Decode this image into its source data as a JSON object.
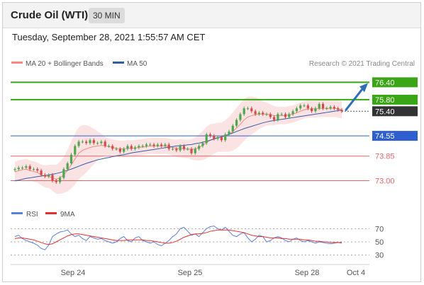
{
  "header": {
    "instrument": "Crude Oil (WTI)",
    "interval": "30 MIN",
    "timestamp": "Tuesday, September 28, 2021 1:55:57 AM CET"
  },
  "colors": {
    "bollinger": "#f4a7a7",
    "ma50": "#3a5fa8",
    "resistance": "#3aa515",
    "pivot": "#2f5fcf",
    "support": "#e06666",
    "last_price_bg": "#333333",
    "rsi": "#5b7fd6",
    "rsi_ma": "#e03030",
    "arrow": "#2f6eb5",
    "up_candle": "#4ea64e",
    "down_candle": "#d24a4a"
  },
  "chart_data": [
    {
      "type": "line",
      "name": "price",
      "legend": [
        {
          "label": "MA 20 + Bollinger Bands",
          "color": "#f28b82"
        },
        {
          "label": "MA 50",
          "color": "#2f5ea8"
        }
      ],
      "source": "Research © 2021 Trading Central",
      "ylim": [
        72.5,
        76.8
      ],
      "price_levels": [
        {
          "value": 76.4,
          "label": "76.40",
          "kind": "resistance"
        },
        {
          "value": 75.8,
          "label": "75.80",
          "kind": "resistance"
        },
        {
          "value": 75.4,
          "label": "75.40",
          "kind": "last"
        },
        {
          "value": 74.55,
          "label": "74.55",
          "kind": "pivot"
        },
        {
          "value": 73.85,
          "label": "73.85",
          "kind": "support"
        },
        {
          "value": 73.0,
          "label": "73.00",
          "kind": "support"
        }
      ],
      "series": [
        {
          "close": [
            73.4,
            73.45,
            73.45,
            73.5,
            73.4,
            73.4,
            73.35,
            73.2,
            73.15,
            73.2,
            73.0,
            72.95,
            73.1,
            73.4,
            73.6,
            73.9,
            74.2,
            74.35,
            74.35,
            74.3,
            74.4,
            74.3,
            74.3,
            74.35,
            74.2,
            74.2,
            74.1,
            74.1,
            74.0,
            74.1,
            74.2,
            74.1,
            74.15,
            74.2,
            74.2,
            74.25,
            74.25,
            74.2,
            74.25,
            74.2,
            74.25,
            74.1,
            74.1,
            74.05,
            74.2,
            74.1,
            74.1,
            73.95,
            74.1,
            74.2,
            74.3,
            74.6,
            74.55,
            74.45,
            74.5,
            74.4,
            74.6,
            74.7,
            74.9,
            75.1,
            75.3,
            75.5,
            75.5,
            75.4,
            75.3,
            75.35,
            75.3,
            75.3,
            75.2,
            75.1,
            75.3,
            75.3,
            75.2,
            75.3,
            75.4,
            75.5,
            75.6,
            75.6,
            75.5,
            75.4,
            75.5,
            75.65,
            75.5,
            75.5,
            75.55,
            75.5,
            75.45,
            75.4
          ]
        }
      ],
      "ma20": [
        73.3,
        73.35,
        73.38,
        73.4,
        73.35,
        73.32,
        73.28,
        73.2,
        73.15,
        73.15,
        73.1,
        73.05,
        73.1,
        73.2,
        73.35,
        73.55,
        73.75,
        73.95,
        74.05,
        74.1,
        74.15,
        74.18,
        74.2,
        74.22,
        74.2,
        74.18,
        74.15,
        74.12,
        74.1,
        74.1,
        74.12,
        74.12,
        74.13,
        74.15,
        74.16,
        74.18,
        74.2,
        74.2,
        74.2,
        74.2,
        74.2,
        74.18,
        74.15,
        74.12,
        74.12,
        74.1,
        74.1,
        74.08,
        74.1,
        74.15,
        74.22,
        74.32,
        74.4,
        74.45,
        74.5,
        74.5,
        74.55,
        74.6,
        74.7,
        74.82,
        74.95,
        75.1,
        75.2,
        75.25,
        75.28,
        75.3,
        75.3,
        75.3,
        75.28,
        75.25,
        75.25,
        75.25,
        75.25,
        75.28,
        75.3,
        75.35,
        75.4,
        75.45,
        75.48,
        75.48,
        75.48,
        75.5,
        75.5,
        75.5,
        75.5,
        75.5,
        75.48,
        75.45
      ],
      "ma50": [
        73.0,
        73.02,
        73.05,
        73.08,
        73.1,
        73.12,
        73.14,
        73.16,
        73.18,
        73.2,
        73.22,
        73.25,
        73.28,
        73.32,
        73.36,
        73.4,
        73.45,
        73.5,
        73.55,
        73.6,
        73.64,
        73.68,
        73.72,
        73.75,
        73.78,
        73.8,
        73.83,
        73.86,
        73.88,
        73.9,
        73.93,
        73.96,
        73.98,
        74.0,
        74.02,
        74.04,
        74.06,
        74.08,
        74.1,
        74.12,
        74.14,
        74.16,
        74.18,
        74.2,
        74.21,
        74.22,
        74.24,
        74.25,
        74.28,
        74.3,
        74.33,
        74.36,
        74.4,
        74.44,
        74.48,
        74.52,
        74.56,
        74.6,
        74.65,
        74.7,
        74.75,
        74.8,
        74.84,
        74.88,
        74.92,
        74.96,
        75.0,
        75.03,
        75.06,
        75.08,
        75.1,
        75.12,
        75.14,
        75.16,
        75.18,
        75.2,
        75.22,
        75.24,
        75.26,
        75.28,
        75.3,
        75.32,
        75.34,
        75.36,
        75.38,
        75.4,
        75.42,
        75.44
      ],
      "bb_width": [
        0.35,
        0.35,
        0.35,
        0.35,
        0.35,
        0.35,
        0.35,
        0.36,
        0.38,
        0.4,
        0.45,
        0.5,
        0.55,
        0.62,
        0.72,
        0.82,
        0.88,
        0.9,
        0.88,
        0.82,
        0.72,
        0.62,
        0.5,
        0.4,
        0.32,
        0.28,
        0.28,
        0.28,
        0.28,
        0.28,
        0.28,
        0.28,
        0.28,
        0.28,
        0.28,
        0.28,
        0.28,
        0.28,
        0.28,
        0.28,
        0.28,
        0.28,
        0.28,
        0.3,
        0.32,
        0.32,
        0.32,
        0.35,
        0.4,
        0.45,
        0.5,
        0.55,
        0.55,
        0.52,
        0.5,
        0.5,
        0.55,
        0.6,
        0.66,
        0.7,
        0.72,
        0.72,
        0.7,
        0.66,
        0.6,
        0.52,
        0.45,
        0.4,
        0.36,
        0.33,
        0.3,
        0.3,
        0.3,
        0.3,
        0.3,
        0.3,
        0.3,
        0.3,
        0.3,
        0.3,
        0.3,
        0.3,
        0.3,
        0.3,
        0.3,
        0.3,
        0.3,
        0.3
      ],
      "x_ticks": [
        "Sep 24",
        "Sep 25",
        "Sep 28",
        "Oct 4"
      ],
      "annotation": "upward arrow toward 76.40"
    },
    {
      "type": "line",
      "name": "oscillator",
      "legend": [
        {
          "label": "RSI",
          "color": "#5b7fd6"
        },
        {
          "label": "9MA",
          "color": "#e03030"
        }
      ],
      "ylim": [
        20,
        80
      ],
      "y_ticks": [
        70,
        50,
        30
      ],
      "series": [
        {
          "name": "RSI",
          "values": [
            58,
            60,
            55,
            52,
            50,
            48,
            45,
            40,
            38,
            45,
            58,
            62,
            65,
            66,
            68,
            62,
            58,
            60,
            55,
            52,
            58,
            56,
            54,
            55,
            52,
            50,
            48,
            50,
            55,
            58,
            52,
            50,
            56,
            58,
            52,
            50,
            48,
            50,
            46,
            44,
            48,
            52,
            58,
            62,
            70,
            72,
            66,
            60,
            62,
            58,
            64,
            70,
            73,
            74,
            70,
            68,
            72,
            66,
            60,
            58,
            62,
            64,
            56,
            50,
            54,
            60,
            58,
            50,
            52,
            56,
            58,
            56,
            52,
            50,
            54,
            56,
            52,
            50,
            52,
            50,
            48,
            50,
            49,
            48,
            47,
            48,
            49,
            48
          ]
        },
        {
          "name": "9MA",
          "values": [
            55,
            56,
            56,
            55,
            54,
            53,
            51,
            49,
            47,
            46,
            47,
            50,
            53,
            56,
            59,
            61,
            62,
            62,
            61,
            60,
            59,
            58,
            57,
            56,
            55,
            54,
            53,
            52,
            52,
            52,
            53,
            53,
            53,
            53,
            53,
            52,
            52,
            51,
            50,
            49,
            48,
            48,
            49,
            51,
            54,
            57,
            59,
            61,
            62,
            62,
            63,
            64,
            66,
            67,
            68,
            68,
            68,
            68,
            67,
            66,
            65,
            64,
            62,
            60,
            59,
            58,
            58,
            57,
            56,
            56,
            56,
            55,
            55,
            54,
            54,
            54,
            54,
            53,
            53,
            52,
            51,
            51,
            50,
            50,
            49,
            49,
            49,
            49
          ]
        }
      ]
    }
  ]
}
